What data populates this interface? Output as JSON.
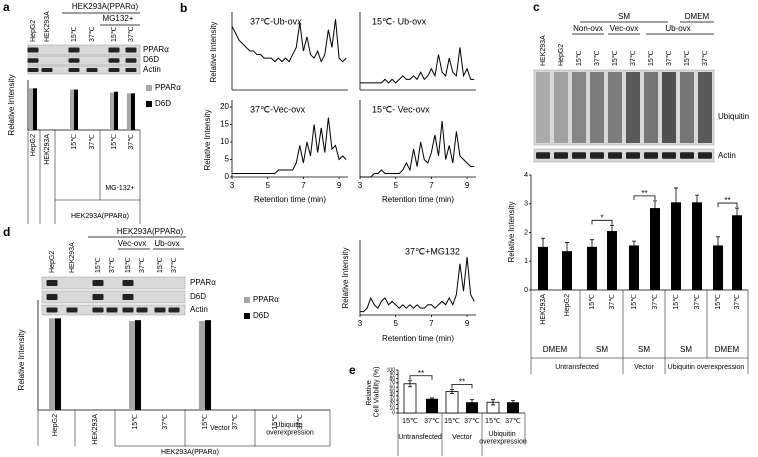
{
  "chart_data": [
    {
      "type": "bar",
      "panel": "a",
      "header": "HEK293A(PPARα)",
      "subheader": "MG132+",
      "lanes": [
        "HepG2",
        "HEK293A",
        "15℃",
        "37℃",
        "15℃",
        "37℃"
      ],
      "blot_labels": [
        "PPARα",
        "D6D",
        "Actin"
      ],
      "y_label": "Relative Intensity",
      "categories": [
        "HepG2",
        "HEK293A",
        "15℃",
        "37℃",
        "15℃",
        "37℃"
      ],
      "group_label": "MG-132+",
      "footer": "HEK293A(PPARα)",
      "ylim": [
        0,
        1.2
      ],
      "series": [
        {
          "name": "PPARα",
          "color": "#a6a6a6",
          "values": [
            1,
            0,
            0.97,
            0,
            0.9,
            0.88
          ]
        },
        {
          "name": "D6D",
          "color": "#000000",
          "values": [
            1,
            0,
            0.97,
            0,
            0.92,
            0.88
          ]
        }
      ]
    },
    {
      "type": "line",
      "panel": "b",
      "title": "37℃-Ub-ovx",
      "y_label": "Relative Intensity",
      "color": "#000000",
      "x": [
        3,
        3.2,
        3.4,
        3.6,
        3.8,
        4,
        4.2,
        4.4,
        4.6,
        4.8,
        5,
        5.2,
        5.4,
        5.6,
        5.8,
        6,
        6.2,
        6.4,
        6.6,
        6.8,
        7,
        7.2,
        7.4,
        7.6,
        7.8,
        8,
        8.2,
        8.4,
        8.6,
        8.8,
        9,
        9.2,
        9.4
      ],
      "values": [
        18,
        16,
        14,
        13,
        12,
        11,
        11,
        10,
        10,
        9,
        9,
        9,
        8,
        9,
        8,
        9,
        8,
        10,
        12,
        19,
        11,
        15,
        10,
        9,
        11,
        8,
        10,
        17,
        12,
        20,
        9,
        8,
        9
      ],
      "xlim": [
        3,
        9.5
      ],
      "ylim": [
        0,
        22
      ]
    },
    {
      "type": "line",
      "title": "15℃- Ub-ovx",
      "color": "#000000",
      "x": [
        3,
        3.2,
        3.4,
        3.6,
        3.8,
        4,
        4.2,
        4.4,
        4.6,
        4.8,
        5,
        5.2,
        5.4,
        5.6,
        5.8,
        6,
        6.2,
        6.4,
        6.6,
        6.8,
        7,
        7.2,
        7.4,
        7.6,
        7.8,
        8,
        8.2,
        8.4,
        8.6,
        8.8,
        9,
        9.2,
        9.4
      ],
      "values": [
        2,
        2,
        2,
        2,
        2,
        2,
        2,
        3,
        2,
        3,
        2,
        3,
        4,
        3,
        3,
        4,
        3,
        5,
        3,
        4,
        6,
        4,
        10,
        5,
        4,
        9,
        5,
        4,
        12,
        4,
        6,
        3,
        3
      ],
      "xlim": [
        3,
        9.5
      ],
      "ylim": [
        0,
        22
      ]
    },
    {
      "type": "line",
      "title": "37℃-Vec-ovx",
      "y_label": "Relative Intensity",
      "x_label": "Retention time (min)",
      "color": "#000000",
      "x": [
        3,
        3.2,
        3.4,
        3.6,
        3.8,
        4,
        4.2,
        4.4,
        4.6,
        4.8,
        5,
        5.2,
        5.4,
        5.6,
        5.8,
        6,
        6.2,
        6.4,
        6.6,
        6.8,
        7,
        7.2,
        7.4,
        7.6,
        7.8,
        8,
        8.2,
        8.4,
        8.6,
        8.8,
        9,
        9.2,
        9.4
      ],
      "values": [
        1,
        1,
        1,
        1,
        1,
        1,
        1,
        1,
        1,
        1,
        1,
        1,
        1,
        2,
        2,
        2,
        2,
        2,
        4,
        9,
        4,
        10,
        6,
        15,
        7,
        14,
        7,
        17,
        8,
        9,
        5,
        6,
        5
      ],
      "xlim": [
        3,
        9.5
      ],
      "ylim": [
        0,
        22
      ],
      "xticks": [
        3,
        5,
        7,
        9
      ],
      "yticks": [
        0,
        5,
        10,
        15,
        20
      ]
    },
    {
      "type": "line",
      "title": "15℃- Vec-ovx",
      "x_label": "Retention time (min)",
      "color": "#000000",
      "x": [
        3,
        3.2,
        3.4,
        3.6,
        3.8,
        4,
        4.2,
        4.4,
        4.6,
        4.8,
        5,
        5.2,
        5.4,
        5.6,
        5.8,
        6,
        6.2,
        6.4,
        6.6,
        6.8,
        7,
        7.2,
        7.4,
        7.6,
        7.8,
        8,
        8.2,
        8.4,
        8.6,
        8.8,
        9,
        9.2,
        9.4
      ],
      "values": [
        0,
        0,
        0,
        0,
        1,
        1,
        2,
        1,
        1,
        1,
        1,
        1,
        2,
        4,
        2,
        8,
        3,
        10,
        5,
        4,
        7,
        12,
        6,
        16,
        5,
        9,
        4,
        13,
        6,
        5,
        4,
        3,
        3
      ],
      "xlim": [
        3,
        9.5
      ],
      "ylim": [
        0,
        22
      ],
      "xticks": [
        3,
        5,
        7,
        9
      ]
    },
    {
      "type": "line",
      "title": "37℃+MG132",
      "y_label": "Relative Intensity",
      "x_label": "Retention time (min)",
      "color": "#000000",
      "x": [
        3,
        3.2,
        3.4,
        3.6,
        3.8,
        4,
        4.2,
        4.4,
        4.6,
        4.8,
        5,
        5.2,
        5.4,
        5.6,
        5.8,
        6,
        6.2,
        6.4,
        6.6,
        6.8,
        7,
        7.2,
        7.4,
        7.6,
        7.8,
        8,
        8.2,
        8.4,
        8.6,
        8.8,
        9,
        9.2,
        9.4
      ],
      "values": [
        1,
        1,
        2,
        5,
        3,
        2,
        4,
        5,
        3,
        4,
        3,
        2,
        3,
        2,
        3,
        2,
        3,
        2,
        2,
        3,
        3,
        2,
        3,
        4,
        3,
        5,
        3,
        6,
        15,
        7,
        17,
        6,
        4
      ],
      "xlim": [
        3,
        9.5
      ],
      "ylim": [
        0,
        22
      ],
      "xticks": [
        3,
        5,
        7,
        9
      ]
    },
    {
      "type": "bar",
      "panel": "c",
      "headers": [
        "SM",
        "DMEM"
      ],
      "subgroups": [
        "Non-ovx",
        "Vec-ovx",
        "Ub-ovx"
      ],
      "lanes": [
        "HEK293A",
        "HepG2",
        "15℃",
        "37℃",
        "15℃",
        "37℃",
        "15℃",
        "37℃",
        "15℃",
        "37℃"
      ],
      "blot_labels": [
        "Ubiquitin",
        "Actin"
      ],
      "y_label": "Relative Intensity",
      "categories": [
        "HEK293A",
        "HepG2",
        "15℃",
        "37℃",
        "15℃",
        "37℃",
        "15℃",
        "37℃",
        "15℃",
        "37℃"
      ],
      "media": [
        "DMEM",
        "SM",
        "SM",
        "SM",
        "DMEM"
      ],
      "groups": [
        "Untransfected",
        "Vector",
        "Ubiquitin overexpression"
      ],
      "ylim": [
        0,
        4
      ],
      "yticks": [
        0,
        1,
        2,
        3,
        4
      ],
      "values": [
        1.5,
        1.35,
        1.5,
        2.05,
        1.55,
        2.85,
        3.05,
        3.05,
        1.55,
        2.6
      ],
      "errors": [
        0.3,
        0.3,
        0.25,
        0.2,
        0.15,
        0.25,
        0.5,
        0.25,
        0.3,
        0.25
      ],
      "color": "#000000",
      "significance": [
        "*",
        "**",
        "**"
      ]
    },
    {
      "type": "bar",
      "panel": "d",
      "header": "HEK293A(PPARα)",
      "subgroups": [
        "Vec-ovx",
        "Ub-ovx"
      ],
      "lanes": [
        "HepG2",
        "HEK293A",
        "15℃",
        "37℃",
        "15℃",
        "37℃",
        "15℃",
        "37℃"
      ],
      "blot_labels": [
        "PPARα",
        "D6D",
        "Actin"
      ],
      "y_label": "Relative Intensity",
      "categories": [
        "HepG2",
        "HEK293A",
        "15℃",
        "37℃",
        "15℃",
        "37℃",
        "15℃",
        "37℃"
      ],
      "groups": [
        "Vector",
        "Ubiquitin overexpression"
      ],
      "footer": "HEK293A(PPARα)",
      "ylim": [
        0,
        1.2
      ],
      "series": [
        {
          "name": "PPARα",
          "color": "#a6a6a6",
          "values": [
            1,
            0,
            0.97,
            0,
            0.97,
            0,
            0,
            0
          ]
        },
        {
          "name": "D6D",
          "color": "#000000",
          "values": [
            1,
            0,
            0.98,
            0,
            0.98,
            0,
            0,
            0
          ]
        }
      ]
    },
    {
      "type": "bar",
      "panel": "e",
      "y_label": "Relative Cell Viability (%)",
      "categories": [
        "15℃",
        "37℃",
        "15℃",
        "37℃",
        "15℃",
        "37℃"
      ],
      "groups": [
        "Untransfected",
        "Vector",
        "Ubiquitin overexpression"
      ],
      "ylim": [
        0,
        100
      ],
      "yticks": [
        0,
        10,
        20,
        30,
        40,
        50,
        60,
        70,
        80,
        90,
        100
      ],
      "values": [
        68,
        33,
        50,
        25,
        25,
        25
      ],
      "errors": [
        7,
        2,
        5,
        6,
        6,
        4
      ],
      "colors": [
        "#ffffff",
        "#000000",
        "#ffffff",
        "#000000",
        "#ffffff",
        "#000000"
      ],
      "significance": [
        "**",
        "**"
      ]
    }
  ]
}
